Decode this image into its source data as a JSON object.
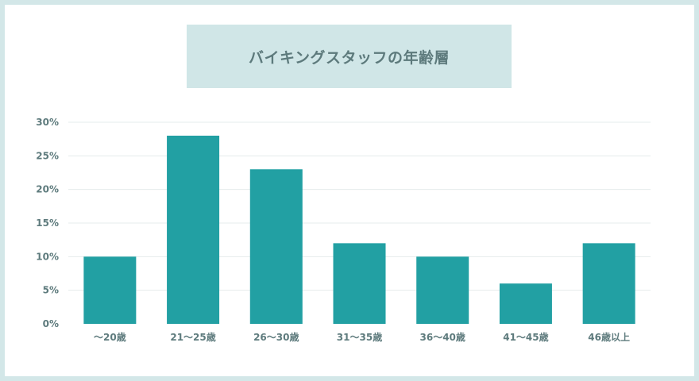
{
  "chart_data": {
    "type": "bar",
    "title": "バイキングスタッフの年齢層",
    "categories": [
      "〜20歳",
      "21〜25歳",
      "26〜30歳",
      "31〜35歳",
      "36〜40歳",
      "41〜45歳",
      "46歳以上"
    ],
    "values": [
      10,
      28,
      23,
      12,
      10,
      6,
      12
    ],
    "unit": "%",
    "ylim": [
      0,
      30
    ],
    "yticks": [
      0,
      5,
      10,
      15,
      20,
      25,
      30
    ],
    "ytick_labels": [
      "0%",
      "5%",
      "10%",
      "15%",
      "20%",
      "25%",
      "30%"
    ],
    "grid": true,
    "legend": "none",
    "colors": {
      "bar": "#22a0a3",
      "grid": "#e5ecec",
      "axis_text": "#5e7b7d",
      "title_bg": "#d0e6e7",
      "page_bg": "#d3e7e8"
    }
  }
}
